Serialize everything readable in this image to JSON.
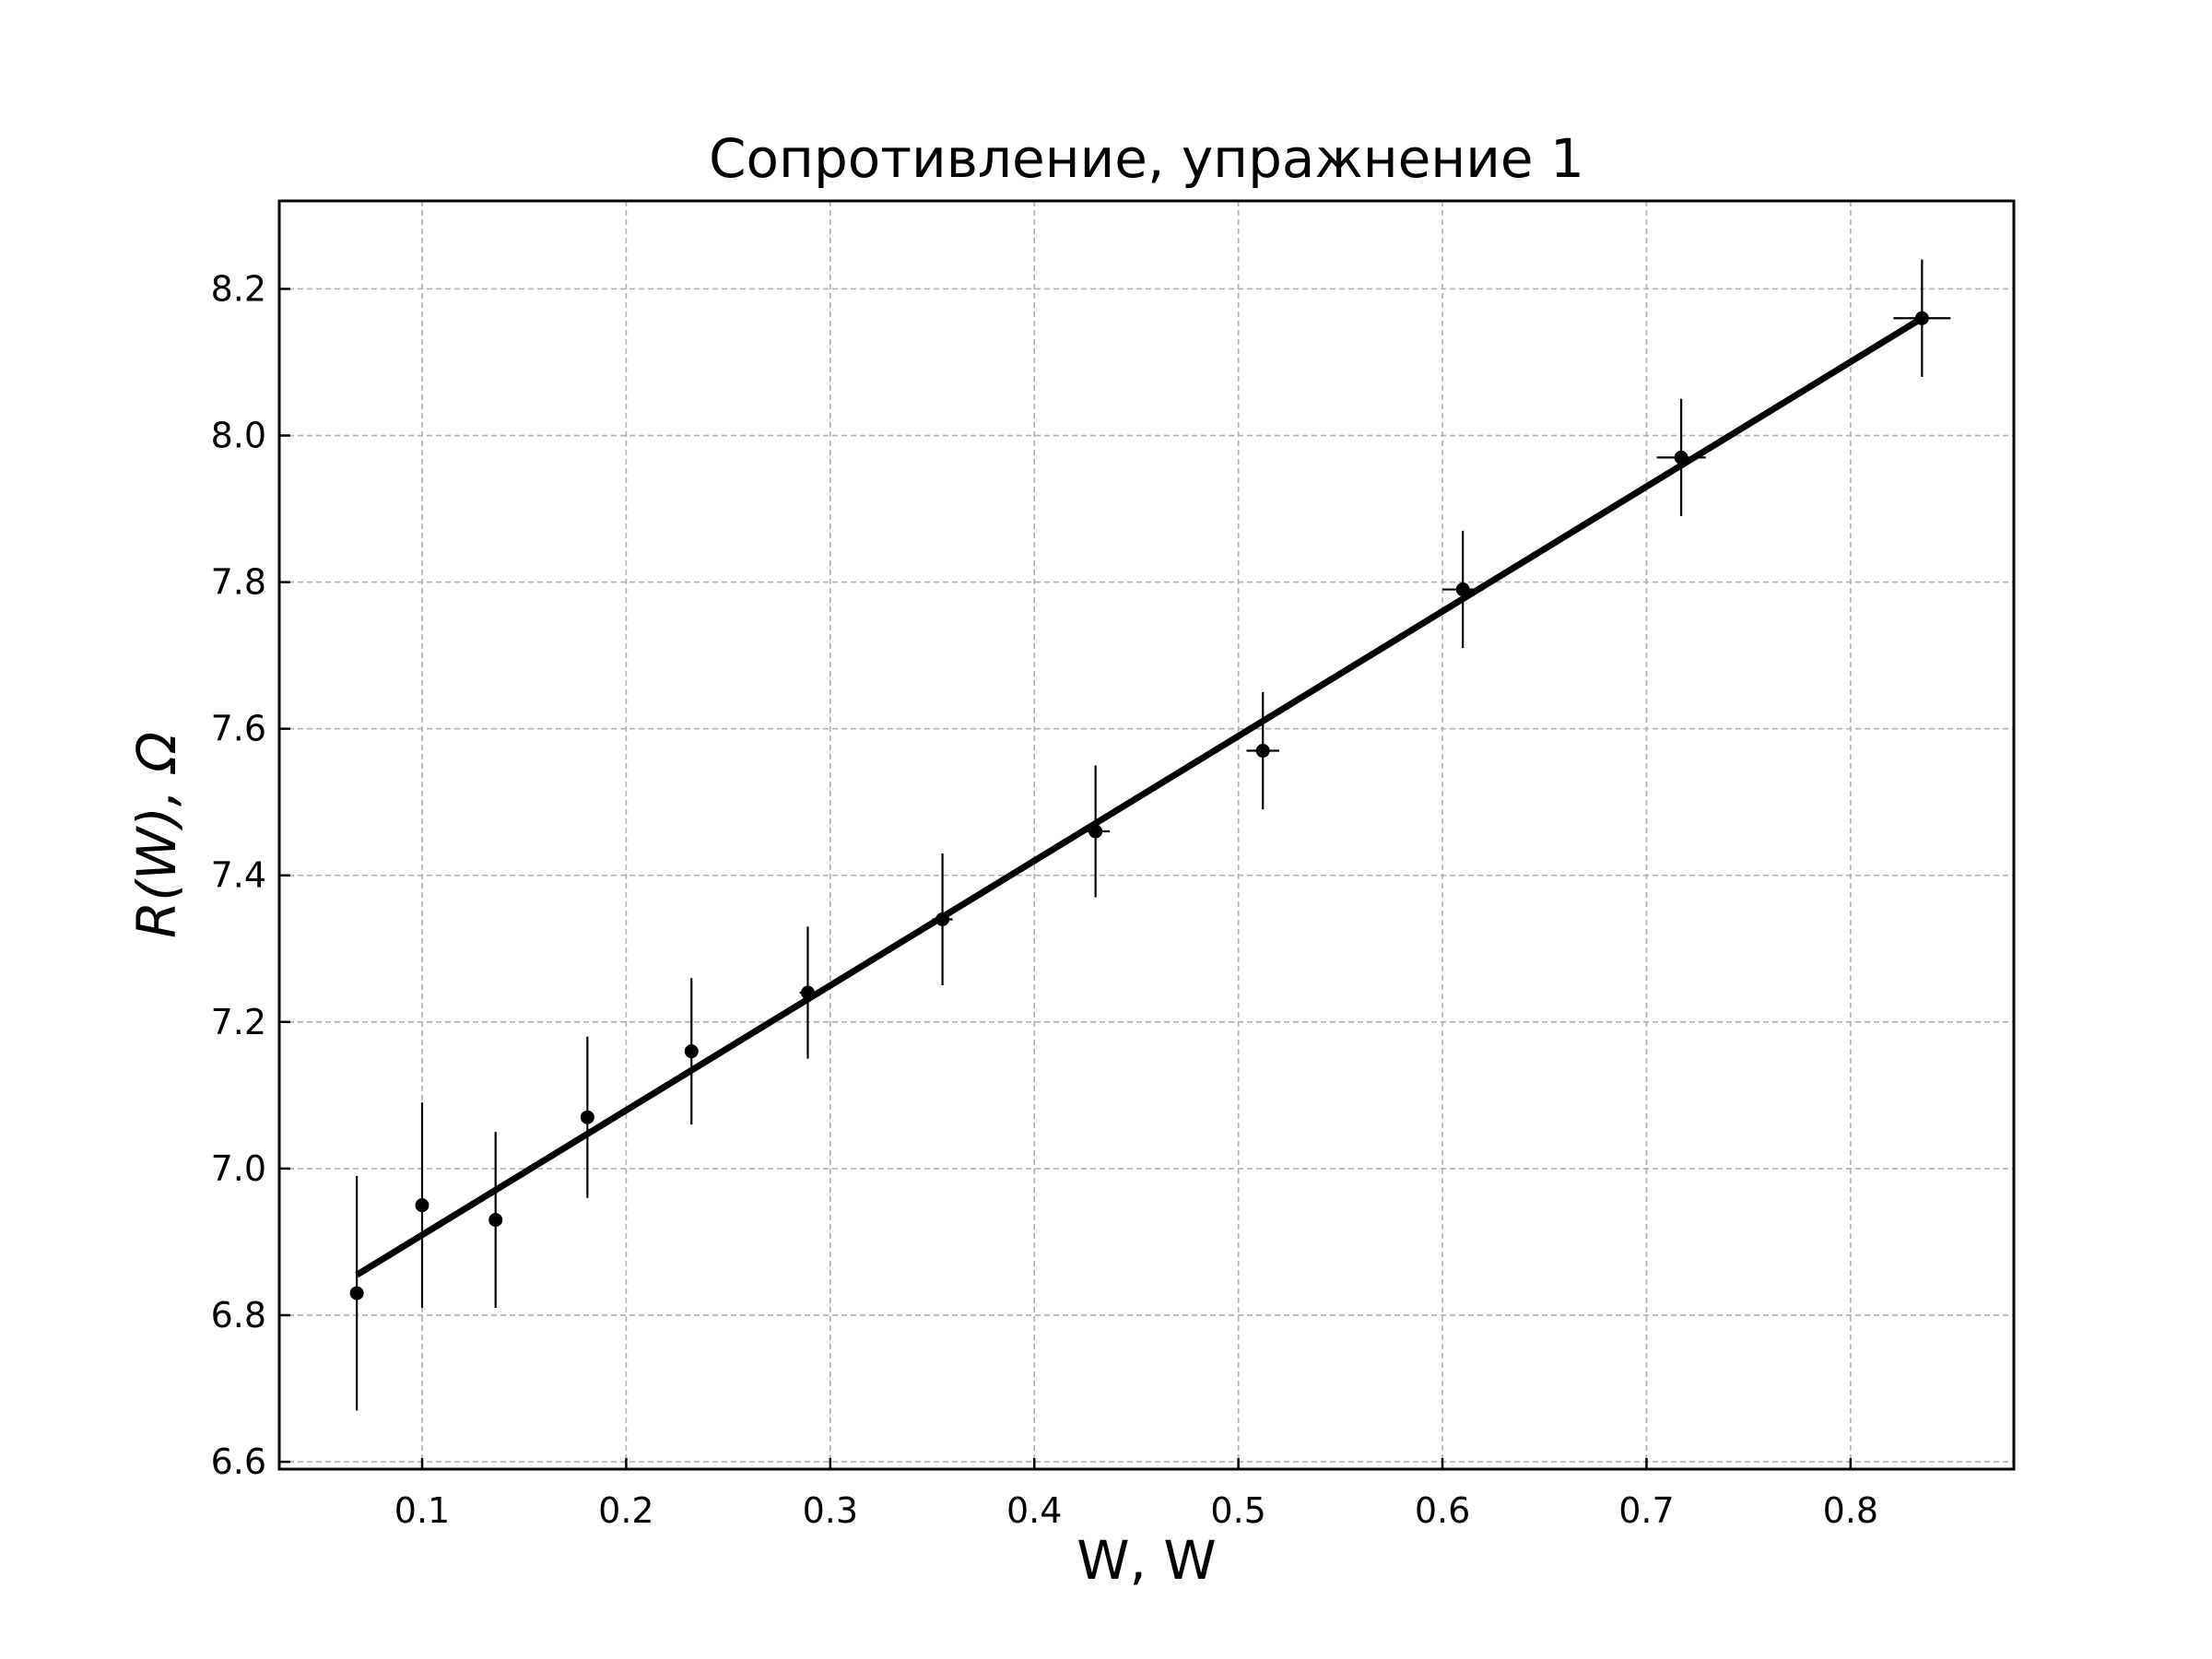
{
  "chart_data": {
    "type": "scatter",
    "title": "Сопротивление, упражнение 1",
    "xlabel": "W, W",
    "ylabel": "R(W), Ω",
    "xlim": [
      0.03,
      0.88
    ],
    "ylim": [
      6.59,
      8.32
    ],
    "x_ticks": [
      "0.1",
      "0.2",
      "0.3",
      "0.4",
      "0.5",
      "0.6",
      "0.7",
      "0.8"
    ],
    "y_ticks": [
      "6.6",
      "6.8",
      "7.0",
      "7.2",
      "7.4",
      "7.6",
      "7.8",
      "8.0",
      "8.2"
    ],
    "grid": true,
    "series": [
      {
        "kind": "errorbar",
        "x": [
          0.068,
          0.1,
          0.136,
          0.181,
          0.232,
          0.289,
          0.355,
          0.43,
          0.512,
          0.61,
          0.717,
          0.835
        ],
        "y": [
          6.83,
          6.95,
          6.93,
          7.07,
          7.16,
          7.24,
          7.34,
          7.46,
          7.57,
          7.79,
          7.97,
          8.16
        ],
        "yerr": [
          0.16,
          0.14,
          0.12,
          0.11,
          0.1,
          0.09,
          0.09,
          0.09,
          0.08,
          0.08,
          0.08,
          0.08
        ],
        "xerr": [
          0.001,
          0.001,
          0.002,
          0.002,
          0.003,
          0.004,
          0.005,
          0.007,
          0.008,
          0.01,
          0.012,
          0.014
        ]
      },
      {
        "kind": "fit-line",
        "x": [
          0.068,
          0.835
        ],
        "y": [
          6.855,
          8.16
        ]
      }
    ]
  }
}
